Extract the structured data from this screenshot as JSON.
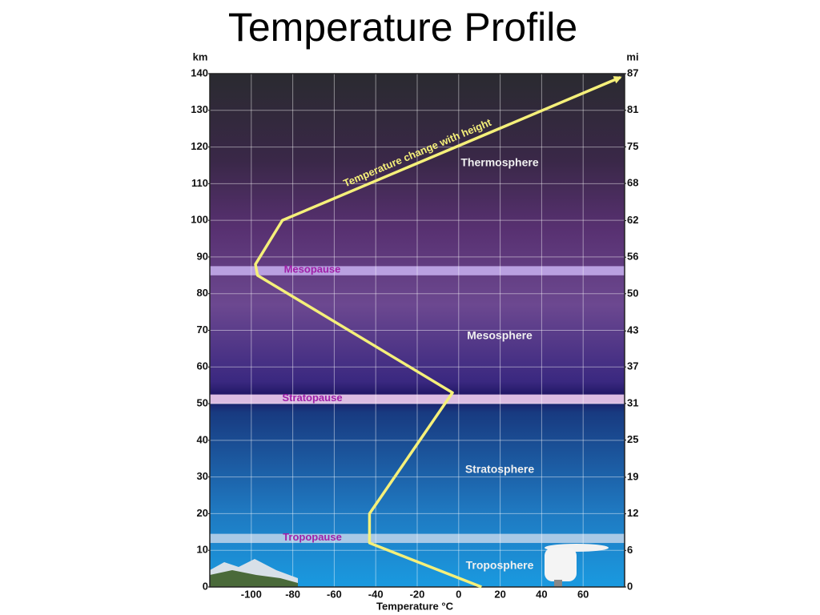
{
  "chart_data": {
    "type": "line",
    "title": "Temperature Profile",
    "xlabel": "Temperature °C",
    "ylabel": "km",
    "y2label": "mi",
    "x": [
      11,
      -43,
      -43,
      -3,
      -97,
      -98,
      -85,
      78
    ],
    "values": [
      0,
      12,
      20,
      53,
      85,
      88,
      100,
      139
    ],
    "color": "#f5f07a",
    "line_label": "Temperature change with height",
    "xlim": [
      -120,
      80
    ],
    "xticks": [
      -100,
      -80,
      -60,
      -40,
      -20,
      0,
      20,
      40,
      60
    ],
    "ylim": [
      0,
      140
    ],
    "yticks": [
      0,
      10,
      20,
      30,
      40,
      50,
      60,
      70,
      80,
      90,
      100,
      110,
      120,
      130,
      140
    ],
    "y2lim": [
      0,
      87
    ],
    "y2ticks": [
      0,
      {
        "value": 6.2,
        "label": "6"
      },
      {
        "value": 12.4,
        "label": "12"
      },
      {
        "value": 18.6,
        "label": "19"
      },
      {
        "value": 24.9,
        "label": "25"
      },
      {
        "value": 31.1,
        "label": "31"
      },
      {
        "value": 37.3,
        "label": "37"
      },
      {
        "value": 43.4,
        "label": "43"
      },
      {
        "value": 49.7,
        "label": "50"
      },
      {
        "value": 55.9,
        "label": "56"
      },
      {
        "value": 62.1,
        "label": "62"
      },
      {
        "value": 68.4,
        "label": "68"
      },
      {
        "value": 74.6,
        "label": "75"
      },
      {
        "value": 80.8,
        "label": "81"
      },
      87
    ],
    "grid": true,
    "bands": [
      {
        "label": "Mesopause",
        "from": 85,
        "to": 87.5,
        "color": "#b9a0e0"
      },
      {
        "label": "Stratopause",
        "from": 50,
        "to": 52.5,
        "color": "#dcbde2"
      },
      {
        "label": "Tropopause",
        "from": 12,
        "to": 14.5,
        "color": "#a9c9e6"
      }
    ],
    "layers": [
      "Thermosphere",
      "Mesosphere",
      "Stratosphere",
      "Troposphere"
    ]
  }
}
